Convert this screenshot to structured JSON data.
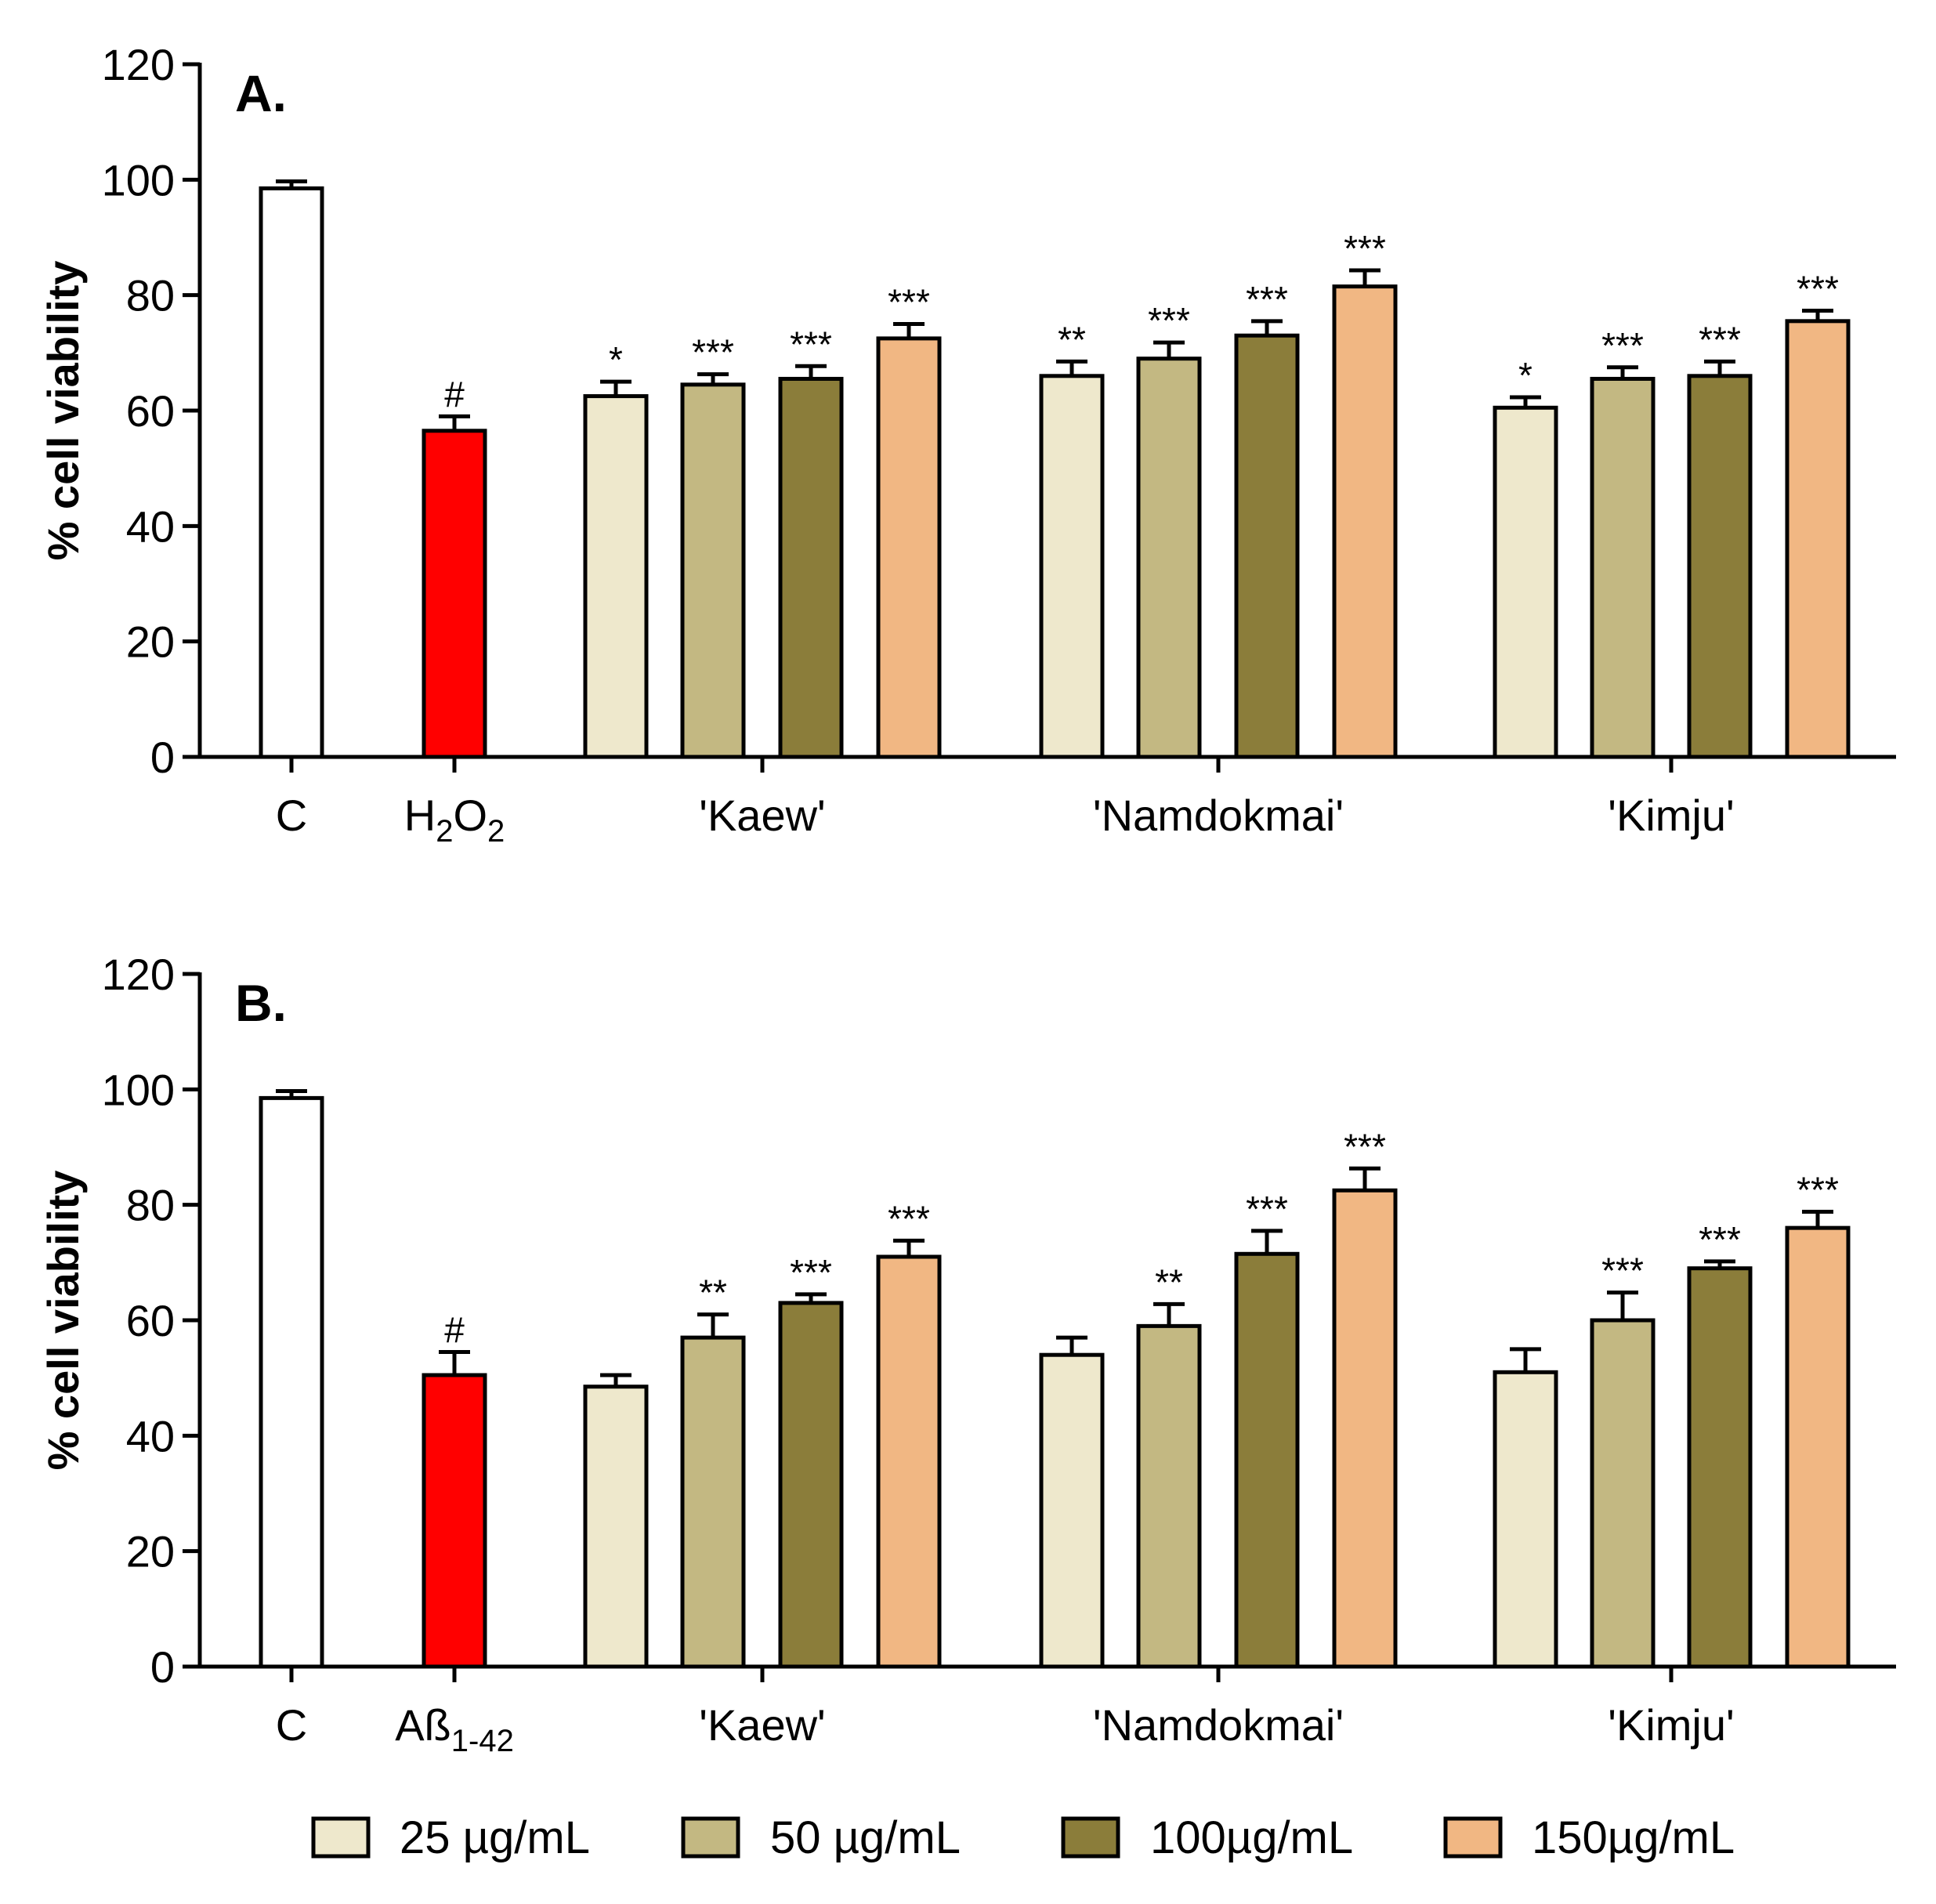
{
  "chart_data": [
    {
      "type": "bar",
      "panel": "A.",
      "ylabel": "% cell viability",
      "ylim": [
        0,
        120
      ],
      "yticks": [
        0,
        20,
        40,
        60,
        80,
        100,
        120
      ],
      "groups": [
        {
          "label": "C",
          "bars": [
            {
              "value": 98.5,
              "err": 1.2,
              "color": "#ffffff",
              "sig": ""
            }
          ]
        },
        {
          "label": "H",
          "sub1": "2",
          "mid": "O",
          "sub2": "2",
          "bars": [
            {
              "value": 56.5,
              "err": 2.5,
              "color": "#ff0000",
              "sig": "#"
            }
          ]
        },
        {
          "label": "'Kaew'",
          "bars": [
            {
              "value": 62.5,
              "err": 2.5,
              "color": "#eee8cc",
              "sig": "*"
            },
            {
              "value": 64.5,
              "err": 1.8,
              "color": "#c3b882",
              "sig": "***"
            },
            {
              "value": 65.5,
              "err": 2.2,
              "color": "#8b7d3a",
              "sig": "***"
            },
            {
              "value": 72.5,
              "err": 2.5,
              "color": "#f1b783",
              "sig": "***"
            }
          ]
        },
        {
          "label": "'Namdokmai'",
          "bars": [
            {
              "value": 66,
              "err": 2.5,
              "color": "#eee8cc",
              "sig": "**"
            },
            {
              "value": 69,
              "err": 2.8,
              "color": "#c3b882",
              "sig": "***"
            },
            {
              "value": 73,
              "err": 2.5,
              "color": "#8b7d3a",
              "sig": "***"
            },
            {
              "value": 81.5,
              "err": 2.8,
              "color": "#f1b783",
              "sig": "***"
            }
          ]
        },
        {
          "label": "'Kimju'",
          "bars": [
            {
              "value": 60.5,
              "err": 1.8,
              "color": "#eee8cc",
              "sig": "*"
            },
            {
              "value": 65.5,
              "err": 2.0,
              "color": "#c3b882",
              "sig": "***"
            },
            {
              "value": 66,
              "err": 2.5,
              "color": "#8b7d3a",
              "sig": "***"
            },
            {
              "value": 75.5,
              "err": 1.8,
              "color": "#f1b783",
              "sig": "***"
            }
          ]
        }
      ]
    },
    {
      "type": "bar",
      "panel": "B.",
      "ylabel": "% cell viability",
      "ylim": [
        0,
        120
      ],
      "yticks": [
        0,
        20,
        40,
        60,
        80,
        100,
        120
      ],
      "groups": [
        {
          "label": "C",
          "bars": [
            {
              "value": 98.5,
              "err": 1.2,
              "color": "#ffffff",
              "sig": ""
            }
          ]
        },
        {
          "label": "Aß",
          "sub1": "1-42",
          "bars": [
            {
              "value": 50.5,
              "err": 4.0,
              "color": "#ff0000",
              "sig": "#"
            }
          ]
        },
        {
          "label": "'Kaew'",
          "bars": [
            {
              "value": 48.5,
              "err": 2.0,
              "color": "#eee8cc",
              "sig": ""
            },
            {
              "value": 57,
              "err": 4.0,
              "color": "#c3b882",
              "sig": "**"
            },
            {
              "value": 63,
              "err": 1.5,
              "color": "#8b7d3a",
              "sig": "***"
            },
            {
              "value": 71,
              "err": 2.8,
              "color": "#f1b783",
              "sig": "***"
            }
          ]
        },
        {
          "label": "'Namdokmai'",
          "bars": [
            {
              "value": 54,
              "err": 3.0,
              "color": "#eee8cc",
              "sig": ""
            },
            {
              "value": 59,
              "err": 3.8,
              "color": "#c3b882",
              "sig": "**"
            },
            {
              "value": 71.5,
              "err": 4.0,
              "color": "#8b7d3a",
              "sig": "***"
            },
            {
              "value": 82.5,
              "err": 3.8,
              "color": "#f1b783",
              "sig": "***"
            }
          ]
        },
        {
          "label": "'Kimju'",
          "bars": [
            {
              "value": 51,
              "err": 4.0,
              "color": "#eee8cc",
              "sig": ""
            },
            {
              "value": 60,
              "err": 4.8,
              "color": "#c3b882",
              "sig": "***"
            },
            {
              "value": 69,
              "err": 1.2,
              "color": "#8b7d3a",
              "sig": "***"
            },
            {
              "value": 76,
              "err": 2.8,
              "color": "#f1b783",
              "sig": "***"
            }
          ]
        }
      ]
    }
  ],
  "legend": [
    {
      "label": "25 µg/mL",
      "color": "#eee8cc"
    },
    {
      "label": "50 µg/mL",
      "color": "#c3b882"
    },
    {
      "label": "100µg/mL",
      "color": "#8b7d3a"
    },
    {
      "label": "150µg/mL",
      "color": "#f1b783"
    }
  ]
}
